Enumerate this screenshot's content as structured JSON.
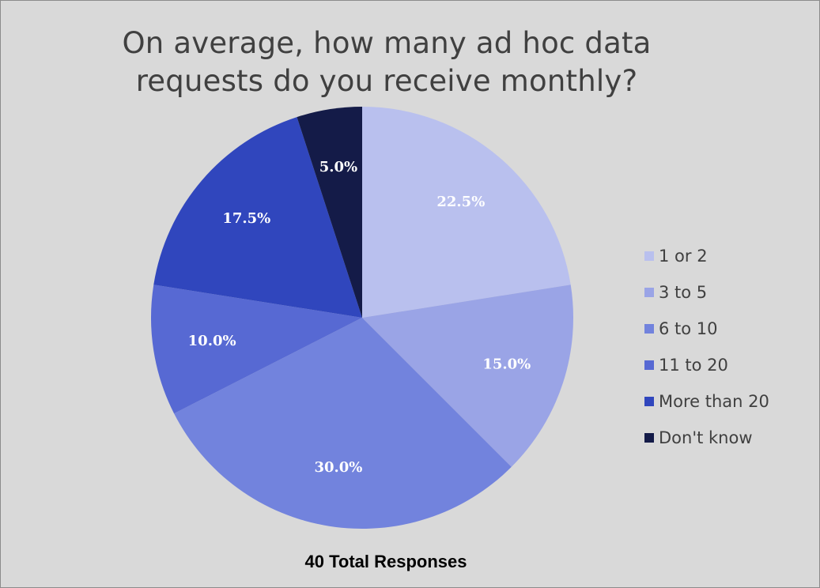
{
  "chart_data": {
    "type": "pie",
    "title": "On average, how many ad hoc data\nrequests do you receive monthly?",
    "slices": [
      {
        "name": "1 or 2",
        "value": 22.5,
        "label": "22.5%",
        "color": "#b9c0ee"
      },
      {
        "name": "3 to 5",
        "value": 15.0,
        "label": "15.0%",
        "color": "#9aa4e6"
      },
      {
        "name": "6 to 10",
        "value": 30.0,
        "label": "30.0%",
        "color": "#7283dd"
      },
      {
        "name": "11 to 20",
        "value": 10.0,
        "label": "10.0%",
        "color": "#5769d3"
      },
      {
        "name": "More than 20",
        "value": 17.5,
        "label": "17.5%",
        "color": "#3046bd"
      },
      {
        "name": "Don't know",
        "value": 5.0,
        "label": "5.0%",
        "color": "#141b48"
      }
    ],
    "start_angle_deg": 0,
    "direction": "clockwise",
    "legend_position": "right",
    "footnote": "40 Total Responses"
  },
  "colors": {
    "background": "#d9d9d9",
    "border": "#8c8c8c",
    "title_text": "#404040",
    "slice_label_text": "#ffffff"
  }
}
